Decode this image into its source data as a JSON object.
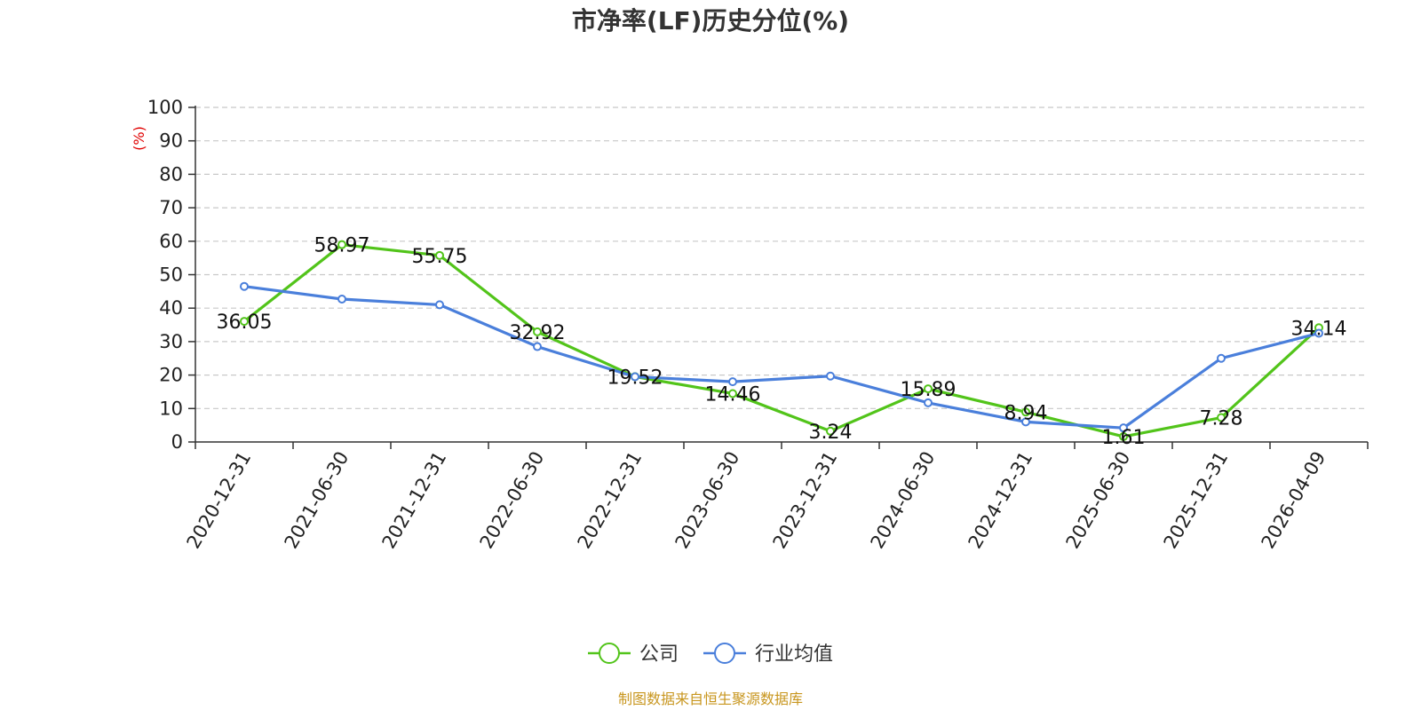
{
  "chart_data": {
    "type": "line",
    "title": "市净率(LF)历史分位(%)",
    "ylabel": "(%)",
    "ylim": [
      0,
      100
    ],
    "yticks": [
      0,
      10,
      20,
      30,
      40,
      50,
      60,
      70,
      80,
      90,
      100
    ],
    "grid": true,
    "legend_position": "bottom-center",
    "categories": [
      "2020-12-31",
      "2021-06-30",
      "2021-12-31",
      "2022-06-30",
      "2022-12-31",
      "2023-06-30",
      "2023-12-31",
      "2024-06-30",
      "2024-12-31",
      "2025-06-30",
      "2025-12-31",
      "2026-04-09"
    ],
    "series": [
      {
        "name": "公司",
        "color": "#52c41a",
        "values": [
          36.05,
          58.97,
          55.75,
          32.92,
          19.52,
          14.46,
          3.24,
          15.89,
          8.94,
          1.61,
          7.28,
          34.14
        ],
        "labels": [
          "36.05",
          "58.97",
          "55.75",
          "32.92",
          "19.52",
          "14.46",
          "3.24",
          "15.89",
          "8.94",
          "1.61",
          "7.28",
          "34.14"
        ]
      },
      {
        "name": "行业均值",
        "color": "#4a7fdb",
        "values": [
          46.5,
          42.7,
          41.0,
          28.5,
          19.5,
          18.0,
          19.7,
          11.7,
          6.0,
          4.2,
          25.0,
          32.5
        ]
      }
    ]
  },
  "source_note": "制图数据来自恒生聚源数据库"
}
